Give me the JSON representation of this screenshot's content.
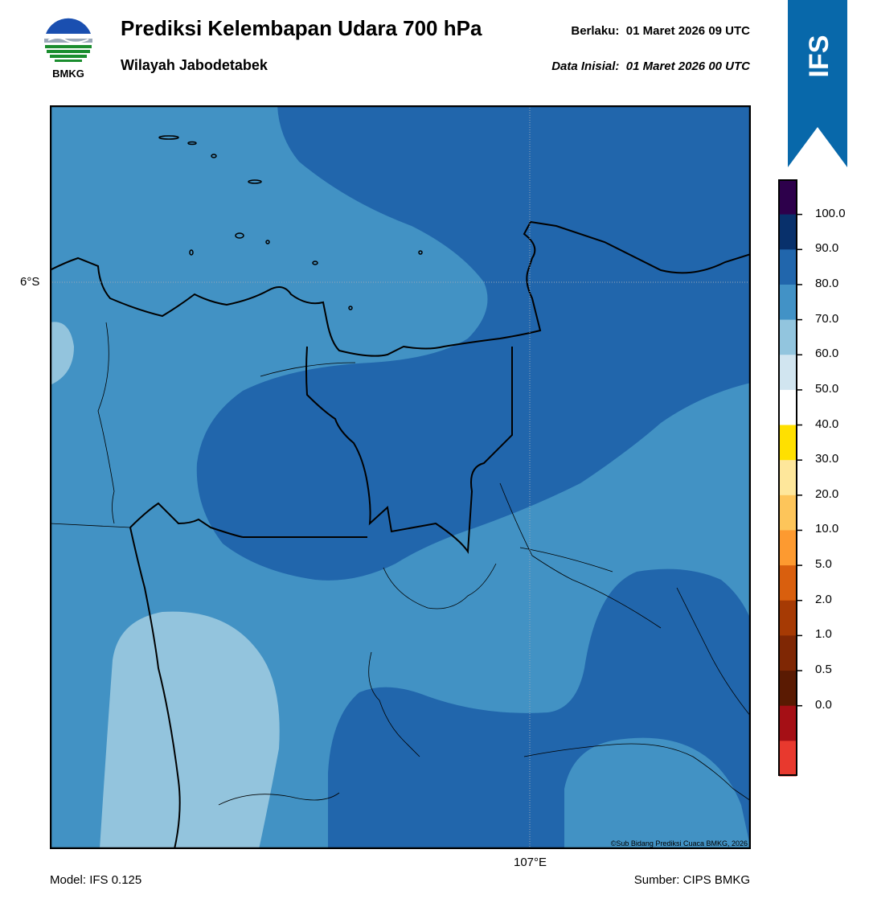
{
  "header": {
    "logo_text": "BMKG",
    "title": "Prediksi Kelembapan Udara 700 hPa",
    "subtitle": "Wilayah Jabodetabek",
    "valid_label": "Berlaku:",
    "valid_value": "01 Maret 2026 09 UTC",
    "init_label": "Data Inisial:",
    "init_value": "01 Maret 2026 00 UTC"
  },
  "badge": {
    "text": "IFS",
    "color": "#0868aa"
  },
  "map": {
    "lat_tick": "6°S",
    "lon_tick": "107°E",
    "copyright": "©Sub Bidang Prediksi Cuaca BMKG, 2026",
    "shading_colors": {
      "60-70": "#93c4dd",
      "70-80": "#4292c4",
      "80-90": "#2166ac"
    }
  },
  "footer": {
    "model": "Model: IFS 0.125",
    "source": "Sumber: CIPS BMKG"
  },
  "colorbar": {
    "labels": [
      "100.0",
      "90.0",
      "80.0",
      "70.0",
      "60.0",
      "50.0",
      "40.0",
      "30.0",
      "20.0",
      "10.0",
      "5.0",
      "2.0",
      "1.0",
      "0.5",
      "0.0"
    ],
    "colors": [
      "#2d004b",
      "#08306b",
      "#2166ac",
      "#4292c6",
      "#92c5de",
      "#d1e5f0",
      "#ffffff",
      "#ffe000",
      "#fee79b",
      "#fdc55a",
      "#fd9a30",
      "#d95f0e",
      "#a63a04",
      "#7f2704",
      "#5a1a02",
      "#a50f15",
      "#e8392e"
    ]
  }
}
